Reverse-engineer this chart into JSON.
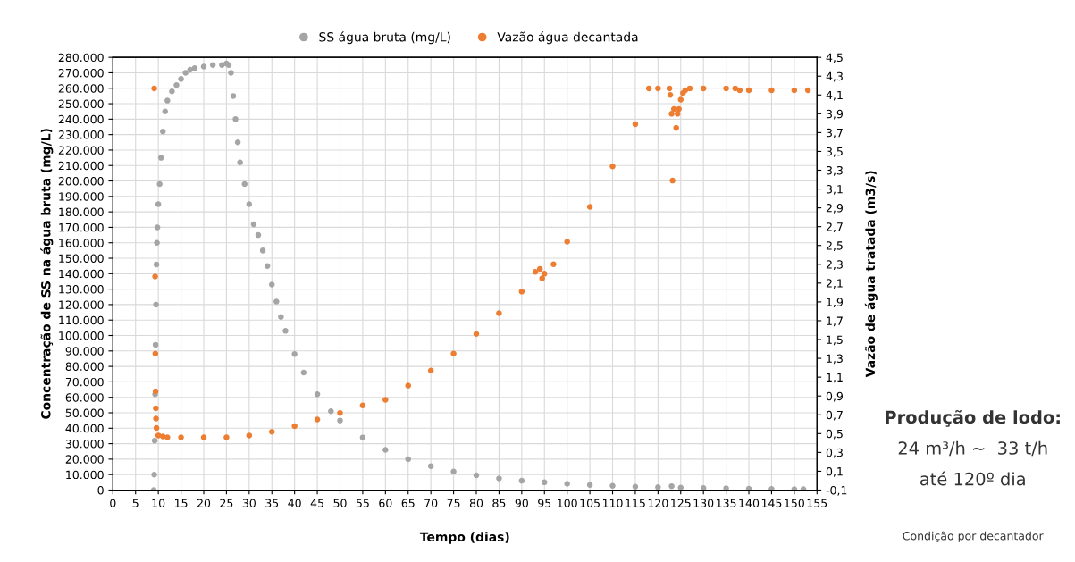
{
  "chart_data": {
    "type": "scatter",
    "xlabel": "Tempo (dias)",
    "ylabel": "Concentração de SS na água bruta (mg/L)",
    "y2label": "Vazão de água tratada (m3/s)",
    "xlim": [
      0,
      155
    ],
    "xticks": [
      0,
      5,
      10,
      15,
      20,
      25,
      30,
      35,
      40,
      45,
      50,
      55,
      60,
      65,
      70,
      75,
      80,
      85,
      90,
      95,
      100,
      105,
      110,
      115,
      120,
      125,
      130,
      135,
      140,
      145,
      150,
      155
    ],
    "ylim": [
      0,
      280000
    ],
    "yticks": [
      {
        "value": 0,
        "label": "0"
      },
      {
        "value": 10000,
        "label": "10.000"
      },
      {
        "value": 20000,
        "label": "20.000"
      },
      {
        "value": 30000,
        "label": "30.000"
      },
      {
        "value": 40000,
        "label": "40.000"
      },
      {
        "value": 50000,
        "label": "50.000"
      },
      {
        "value": 60000,
        "label": "60.000"
      },
      {
        "value": 70000,
        "label": "70.000"
      },
      {
        "value": 80000,
        "label": "80.000"
      },
      {
        "value": 90000,
        "label": "90.000"
      },
      {
        "value": 100000,
        "label": "100.000"
      },
      {
        "value": 110000,
        "label": "110.000"
      },
      {
        "value": 120000,
        "label": "120.000"
      },
      {
        "value": 130000,
        "label": "130.000"
      },
      {
        "value": 140000,
        "label": "140.000"
      },
      {
        "value": 150000,
        "label": "150.000"
      },
      {
        "value": 160000,
        "label": "160.000"
      },
      {
        "value": 170000,
        "label": "170.000"
      },
      {
        "value": 180000,
        "label": "180.000"
      },
      {
        "value": 190000,
        "label": "190.000"
      },
      {
        "value": 200000,
        "label": "200.000"
      },
      {
        "value": 210000,
        "label": "210.000"
      },
      {
        "value": 220000,
        "label": "220.000"
      },
      {
        "value": 230000,
        "label": "230.000"
      },
      {
        "value": 240000,
        "label": "240.000"
      },
      {
        "value": 250000,
        "label": "250.000"
      },
      {
        "value": 260000,
        "label": "260.000"
      },
      {
        "value": 270000,
        "label": "270.000"
      },
      {
        "value": 280000,
        "label": "280.000"
      }
    ],
    "y2lim": [
      -0.1,
      4.5
    ],
    "y2ticks": [
      {
        "value": -0.1,
        "label": "-0,1"
      },
      {
        "value": 0.1,
        "label": "0,1"
      },
      {
        "value": 0.3,
        "label": "0,3"
      },
      {
        "value": 0.5,
        "label": "0,5"
      },
      {
        "value": 0.7,
        "label": "0,7"
      },
      {
        "value": 0.9,
        "label": "0,9"
      },
      {
        "value": 1.1,
        "label": "1,1"
      },
      {
        "value": 1.3,
        "label": "1,3"
      },
      {
        "value": 1.5,
        "label": "1,5"
      },
      {
        "value": 1.7,
        "label": "1,7"
      },
      {
        "value": 1.9,
        "label": "1,9"
      },
      {
        "value": 2.1,
        "label": "2,1"
      },
      {
        "value": 2.3,
        "label": "2,3"
      },
      {
        "value": 2.5,
        "label": "2,5"
      },
      {
        "value": 2.7,
        "label": "2,7"
      },
      {
        "value": 2.9,
        "label": "2,9"
      },
      {
        "value": 3.1,
        "label": "3,1"
      },
      {
        "value": 3.3,
        "label": "3,3"
      },
      {
        "value": 3.5,
        "label": "3,5"
      },
      {
        "value": 3.7,
        "label": "3,7"
      },
      {
        "value": 3.9,
        "label": "3,9"
      },
      {
        "value": 4.1,
        "label": "4,1"
      },
      {
        "value": 4.3,
        "label": "4,3"
      },
      {
        "value": 4.5,
        "label": "4,5"
      }
    ],
    "grid": true,
    "legend": "top",
    "marker": "circle",
    "series": [
      {
        "name": "SS água bruta (mg/L)",
        "color": "#a5a5a5",
        "x": [
          9,
          9.1,
          9.2,
          9.3,
          9.4,
          9.5,
          9.6,
          9.7,
          9.8,
          10,
          10.3,
          10.6,
          11,
          11.5,
          12,
          13,
          14,
          15,
          16,
          17,
          18,
          20,
          22,
          24,
          25,
          25.5,
          26,
          26.5,
          27,
          27.5,
          28,
          29,
          30,
          31,
          32,
          33,
          34,
          35,
          36,
          37,
          38,
          40,
          42,
          45,
          48,
          50,
          55,
          60,
          65,
          70,
          75,
          80,
          85,
          90,
          95,
          100,
          105,
          110,
          115,
          120,
          123,
          125,
          130,
          135,
          140,
          145,
          150,
          152
        ],
        "values": [
          0,
          10000,
          32000,
          62000,
          94000,
          120000,
          146000,
          160000,
          170000,
          185000,
          198000,
          215000,
          232000,
          245000,
          252000,
          258000,
          262000,
          266000,
          270000,
          272000,
          273000,
          274000,
          275000,
          275000,
          276000,
          275000,
          270000,
          255000,
          240000,
          225000,
          212000,
          198000,
          185000,
          172000,
          165000,
          155000,
          145000,
          133000,
          122000,
          112000,
          103000,
          88000,
          76000,
          62000,
          51000,
          45000,
          34000,
          26000,
          20000,
          15500,
          12000,
          9500,
          7500,
          6000,
          5000,
          4000,
          3300,
          2700,
          2200,
          1800,
          2500,
          1600,
          1300,
          1100,
          900,
          700,
          600,
          500
        ]
      },
      {
        "name": "Vazão água decantada",
        "color": "#ed7d31",
        "axis": "y2",
        "x": [
          9.1,
          9.3,
          9.35,
          9.4,
          9.45,
          9.5,
          9.6,
          10,
          11,
          12,
          15,
          20,
          25,
          30,
          35,
          40,
          45,
          50,
          55,
          60,
          65,
          70,
          75,
          80,
          85,
          90,
          93,
          94,
          94.5,
          95,
          97,
          100,
          105,
          110,
          115,
          118,
          120,
          122.5,
          122.7,
          123,
          123.2,
          123.5,
          124,
          124.3,
          124.6,
          125,
          125.5,
          126,
          127,
          130,
          135,
          137,
          138,
          140,
          145,
          150,
          153
        ],
        "values": [
          4.17,
          2.17,
          1.35,
          0.95,
          0.77,
          0.66,
          0.56,
          0.48,
          0.47,
          0.46,
          0.46,
          0.46,
          0.46,
          0.48,
          0.52,
          0.58,
          0.65,
          0.72,
          0.8,
          0.86,
          1.01,
          1.17,
          1.35,
          1.56,
          1.78,
          2.01,
          2.22,
          2.25,
          2.15,
          2.2,
          2.3,
          2.54,
          2.91,
          3.34,
          3.79,
          4.17,
          4.17,
          4.17,
          4.1,
          3.9,
          3.19,
          3.95,
          3.75,
          3.9,
          3.95,
          4.05,
          4.12,
          4.15,
          4.17,
          4.17,
          4.17,
          4.17,
          4.15,
          4.15,
          4.15,
          4.15,
          4.15
        ]
      }
    ],
    "annotations": [
      "Produção de lodo:",
      "24 m³/h ~  33 t/h",
      "até 120º dia",
      "Condição por decantador"
    ]
  }
}
